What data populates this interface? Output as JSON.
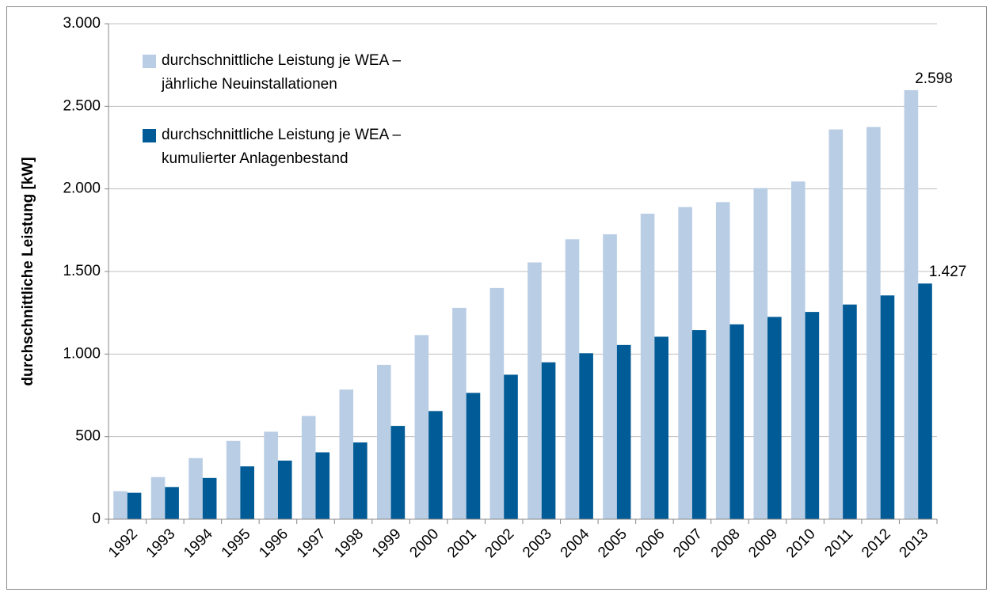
{
  "chart_data": {
    "type": "bar",
    "y_label": "durchschnittliche Leistung [kW]",
    "categories": [
      "1992",
      "1993",
      "1994",
      "1995",
      "1996",
      "1997",
      "1998",
      "1999",
      "2000",
      "2001",
      "2002",
      "2003",
      "2004",
      "2005",
      "2006",
      "2007",
      "2008",
      "2009",
      "2010",
      "2011",
      "2012",
      "2013"
    ],
    "series": [
      {
        "name": "durchschnittliche Leistung  je WEA –\njährliche Neuinstallationen",
        "color": "#b9cde5",
        "values": [
          170,
          255,
          370,
          475,
          530,
          625,
          785,
          935,
          1115,
          1280,
          1400,
          1555,
          1695,
          1725,
          1850,
          1890,
          1920,
          2005,
          2045,
          2360,
          2375,
          2598
        ],
        "value_labels": [
          null,
          null,
          null,
          null,
          null,
          null,
          null,
          null,
          null,
          null,
          null,
          null,
          null,
          null,
          null,
          null,
          null,
          null,
          null,
          null,
          null,
          "2.598"
        ]
      },
      {
        "name": "durchschnittliche Leistung  je WEA –\nkumulierter Anlagenbestand",
        "color": "#005b96",
        "values": [
          160,
          195,
          250,
          320,
          355,
          405,
          465,
          565,
          655,
          765,
          875,
          950,
          1005,
          1055,
          1105,
          1145,
          1180,
          1225,
          1255,
          1300,
          1355,
          1427
        ],
        "value_labels": [
          null,
          null,
          null,
          null,
          null,
          null,
          null,
          null,
          null,
          null,
          null,
          null,
          null,
          null,
          null,
          null,
          null,
          null,
          null,
          null,
          null,
          "1.427"
        ]
      }
    ],
    "ylim": [
      0,
      3000
    ],
    "yticks": [
      0,
      500,
      {
        "value": 1000,
        "label": "1.000"
      },
      {
        "value": 1500,
        "label": "1.500"
      },
      {
        "value": 2000,
        "label": "2.000"
      },
      {
        "value": 2500,
        "label": "2.500"
      },
      {
        "value": 3000,
        "label": "3.000"
      }
    ],
    "grid": true
  }
}
